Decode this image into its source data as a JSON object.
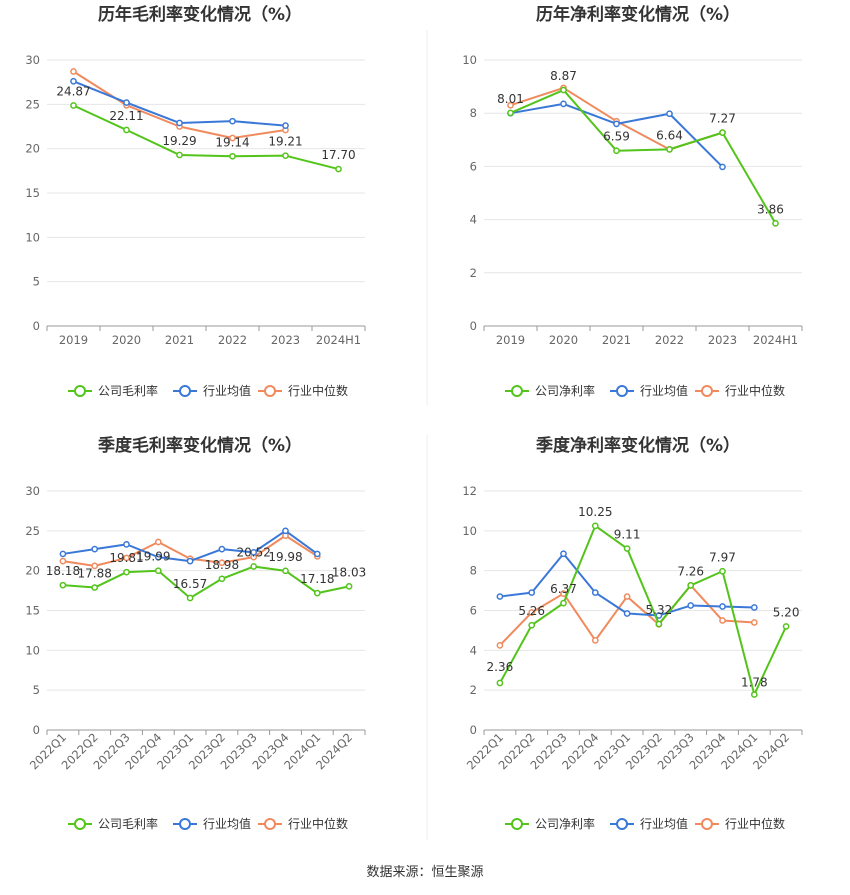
{
  "source_text": "数据来源：恒生聚源",
  "colors": {
    "company": "#52c41a",
    "avg": "#3a78d8",
    "median": "#f08a5d"
  },
  "legend": {
    "gross": [
      "公司毛利率",
      "行业均值",
      "行业中位数"
    ],
    "net": [
      "公司净利率",
      "行业均值",
      "行业中位数"
    ]
  },
  "chart_data": [
    {
      "type": "line",
      "title": "历年毛利率变化情况（%）",
      "categories": [
        "2019",
        "2020",
        "2021",
        "2022",
        "2023",
        "2024H1"
      ],
      "ylim": [
        0,
        30
      ],
      "yticks": [
        0,
        5,
        10,
        15,
        20,
        25,
        30
      ],
      "series": [
        {
          "name": "公司毛利率",
          "values": [
            24.87,
            22.11,
            19.29,
            19.14,
            19.21,
            17.7
          ],
          "labels": [
            "24.87",
            "22.11",
            "19.29",
            "19.14",
            "19.21",
            "17.70"
          ]
        },
        {
          "name": "行业均值",
          "values": [
            27.6,
            25.2,
            22.9,
            23.1,
            22.6,
            null
          ]
        },
        {
          "name": "行业中位数",
          "values": [
            28.7,
            24.9,
            22.5,
            21.2,
            22.1,
            null
          ]
        }
      ]
    },
    {
      "type": "line",
      "title": "历年净利率变化情况（%）",
      "categories": [
        "2019",
        "2020",
        "2021",
        "2022",
        "2023",
        "2024H1"
      ],
      "ylim": [
        0,
        10
      ],
      "yticks": [
        0,
        2,
        4,
        6,
        8,
        10
      ],
      "series": [
        {
          "name": "公司净利率",
          "values": [
            8.01,
            8.87,
            6.59,
            6.64,
            7.27,
            3.86
          ],
          "labels": [
            "8.01",
            "8.87",
            "6.59",
            "6.64",
            "7.27",
            "3.86"
          ]
        },
        {
          "name": "行业均值",
          "values": [
            8.0,
            8.35,
            7.6,
            7.98,
            5.98,
            null
          ]
        },
        {
          "name": "行业中位数",
          "values": [
            8.3,
            8.95,
            7.7,
            6.64,
            7.27,
            null
          ]
        }
      ]
    },
    {
      "type": "line",
      "title": "季度毛利率变化情况（%）",
      "categories": [
        "2022Q1",
        "2022Q2",
        "2022Q3",
        "2022Q4",
        "2023Q1",
        "2023Q2",
        "2023Q3",
        "2023Q4",
        "2024Q1",
        "2024Q2"
      ],
      "ylim": [
        0,
        30
      ],
      "yticks": [
        0,
        5,
        10,
        15,
        20,
        25,
        30
      ],
      "series": [
        {
          "name": "公司毛利率",
          "values": [
            18.18,
            17.88,
            19.81,
            19.99,
            16.57,
            18.98,
            20.52,
            19.98,
            17.18,
            18.03
          ],
          "labels": [
            "18.18",
            "17.88",
            "19.81",
            "19.99",
            "16.57",
            "18.98",
            "20.52",
            "19.98",
            "17.18",
            "18.03"
          ]
        },
        {
          "name": "行业均值",
          "values": [
            22.1,
            22.7,
            23.3,
            21.7,
            21.2,
            22.7,
            22.3,
            25.0,
            22.1,
            null
          ]
        },
        {
          "name": "行业中位数",
          "values": [
            21.2,
            20.6,
            21.6,
            23.6,
            21.5,
            21.0,
            21.7,
            24.4,
            21.8,
            null
          ]
        }
      ]
    },
    {
      "type": "line",
      "title": "季度净利率变化情况（%）",
      "categories": [
        "2022Q1",
        "2022Q2",
        "2022Q3",
        "2022Q4",
        "2023Q1",
        "2023Q2",
        "2023Q3",
        "2023Q4",
        "2024Q1",
        "2024Q2"
      ],
      "ylim": [
        0,
        12
      ],
      "yticks": [
        0,
        2,
        4,
        6,
        8,
        10,
        12
      ],
      "series": [
        {
          "name": "公司净利率",
          "values": [
            2.36,
            5.26,
            6.37,
            10.25,
            9.11,
            5.32,
            7.26,
            7.97,
            1.78,
            5.2
          ],
          "labels": [
            "2.36",
            "5.26",
            "6.37",
            "10.25",
            "9.11",
            "5.32",
            "7.26",
            "7.97",
            "1.78",
            "5.20"
          ]
        },
        {
          "name": "行业均值",
          "values": [
            6.7,
            6.9,
            8.85,
            6.9,
            5.85,
            5.75,
            6.25,
            6.2,
            6.15,
            null
          ]
        },
        {
          "name": "行业中位数",
          "values": [
            4.25,
            5.9,
            6.85,
            4.5,
            6.7,
            5.3,
            7.26,
            5.5,
            5.4,
            null
          ]
        }
      ]
    }
  ]
}
